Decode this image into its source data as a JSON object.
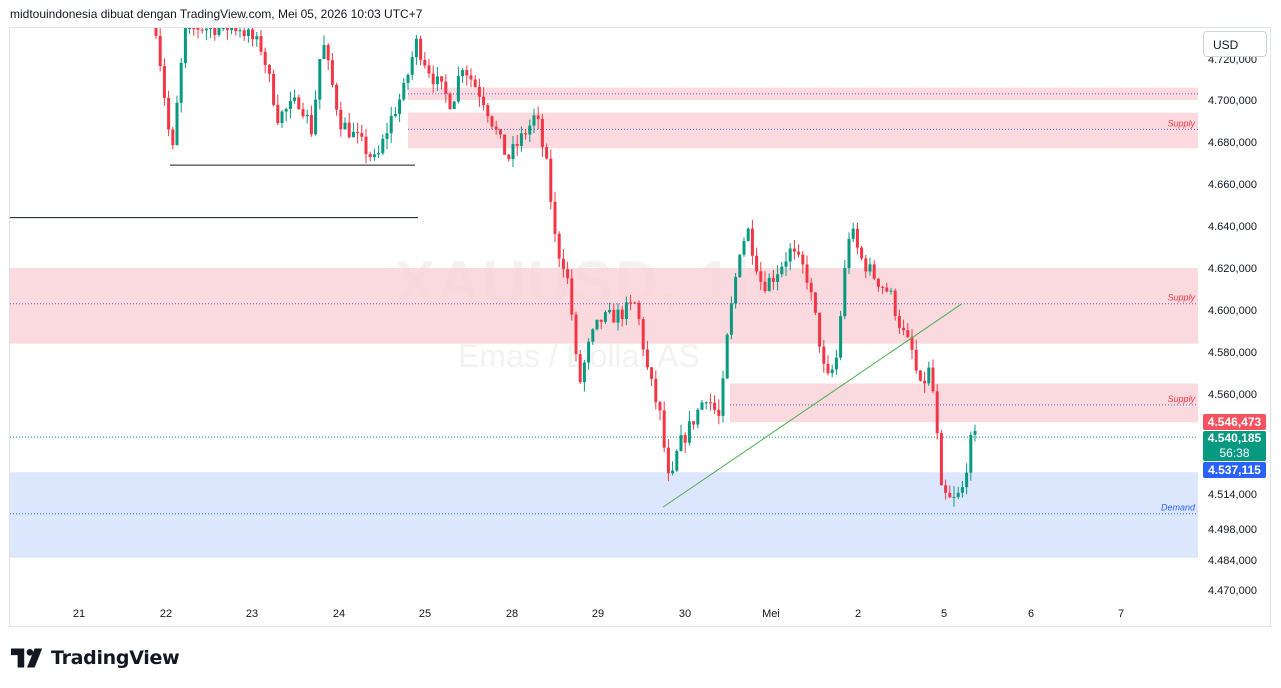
{
  "header": {
    "text": "midtouindonesia dibuat dengan TradingView.com, Mei 05, 2026 10:03 UTC+7"
  },
  "currency_button": {
    "label": "USD"
  },
  "watermark": {
    "symbol": "XAUUSD, 1h",
    "description": "Emas / Dollar AS"
  },
  "price_labels": {
    "ask": "4.546,473",
    "last": "4.540,185",
    "countdown": "56:38",
    "bid": "4.537,115"
  },
  "branding": {
    "name": "TradingView"
  },
  "colors": {
    "up": "#089981",
    "down": "#f23645",
    "supply_zone": "#f9d4d8",
    "demand_zone": "#d6e2fd",
    "supply_text": "#f23645",
    "demand_text": "#2962ff",
    "trendline": "#4caf50"
  },
  "chart_data": {
    "type": "candlestick",
    "symbol": "XAUUSD",
    "interval": "1h",
    "x_ticks": [
      "21",
      "22",
      "23",
      "24",
      "25",
      "28",
      "29",
      "30",
      "Mei",
      "2",
      "5",
      "6",
      "7"
    ],
    "y_ticks": [
      "4.720,000",
      "4.700,000",
      "4.680,000",
      "4.660,000",
      "4.640,000",
      "4.620,000",
      "4.600,000",
      "4.580,000",
      "4.560,000",
      "4.514,000",
      "4.498,000",
      "4.484,000",
      "4.470,000"
    ],
    "y_tick_values": [
      4720,
      4700,
      4680,
      4660,
      4640,
      4620,
      4600,
      4580,
      4560,
      4514,
      4498,
      4484,
      4470
    ],
    "zones": [
      {
        "kind": "supply",
        "label": "",
        "from": 4700,
        "to": 4706,
        "mid": 4703
      },
      {
        "kind": "supply",
        "label": "Supply",
        "from": 4677,
        "to": 4694,
        "mid": 4686
      },
      {
        "kind": "supply",
        "label": "Supply",
        "from": 4584,
        "to": 4620,
        "mid": 4603
      },
      {
        "kind": "supply",
        "label": "Supply",
        "from": 4547,
        "to": 4565,
        "mid": 4555
      },
      {
        "kind": "demand",
        "label": "Demand",
        "from": 4485,
        "to": 4524,
        "mid": 4505
      }
    ],
    "horizontal_levels": [
      4669,
      4644
    ],
    "trendline": [
      [
        4508
      ],
      [
        4603
      ]
    ],
    "last_price": 4540.185,
    "key_points": [
      {
        "label": "22 low",
        "price": 4669
      },
      {
        "label": "28 high",
        "price": 4700
      },
      {
        "label": "30 low",
        "price": 4508
      },
      {
        "label": "Mei high",
        "price": 4646
      },
      {
        "label": "2 high",
        "price": 4660
      },
      {
        "label": "5 low",
        "price": 4500
      },
      {
        "label": "5 last",
        "price": 4540
      }
    ]
  }
}
